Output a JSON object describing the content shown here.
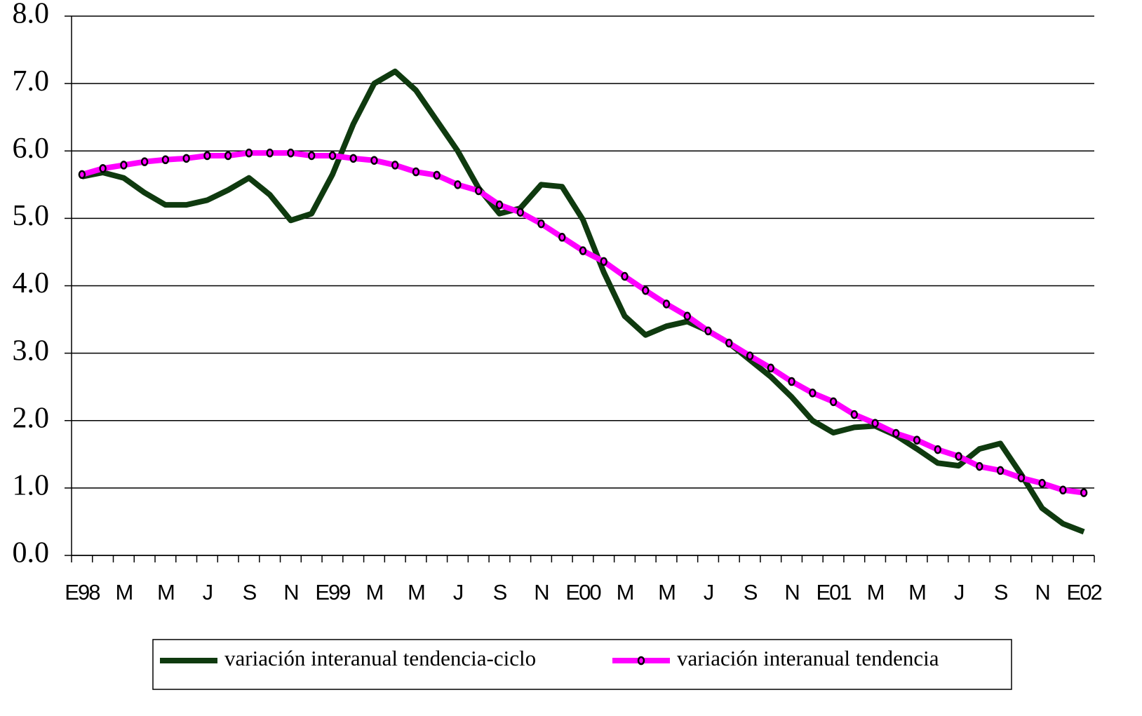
{
  "chart_data": {
    "type": "line",
    "categories": [
      "E98",
      null,
      "M",
      null,
      "M",
      null,
      "J",
      null,
      "S",
      null,
      "N",
      null,
      "E99",
      null,
      "M",
      null,
      "M",
      null,
      "J",
      null,
      "S",
      null,
      "N",
      null,
      "E00",
      null,
      "M",
      null,
      "M",
      null,
      "J",
      null,
      "S",
      null,
      "N",
      null,
      "E01",
      null,
      "M",
      null,
      "M",
      null,
      "J",
      null,
      "S",
      null,
      "N",
      null,
      "E02"
    ],
    "series": [
      {
        "name": "variación interanual tendencia-ciclo",
        "color": "#0f3a0f",
        "marker": false,
        "values": [
          5.62,
          5.68,
          5.6,
          5.38,
          5.2,
          5.2,
          5.27,
          5.42,
          5.6,
          5.35,
          4.97,
          5.07,
          5.65,
          6.4,
          7.0,
          7.18,
          6.9,
          6.45,
          6.0,
          5.45,
          5.07,
          5.15,
          5.5,
          5.47,
          4.98,
          4.2,
          3.55,
          3.27,
          3.4,
          3.47,
          3.33,
          3.15,
          2.9,
          2.65,
          2.35,
          2.0,
          1.82,
          1.9,
          1.92,
          1.78,
          1.58,
          1.37,
          1.33,
          1.58,
          1.66,
          1.2,
          0.7,
          0.47,
          0.35
        ]
      },
      {
        "name": "variación interanual tendencia",
        "color": "#ff00ff",
        "marker": true,
        "values": [
          5.65,
          5.74,
          5.79,
          5.84,
          5.87,
          5.89,
          5.93,
          5.93,
          5.97,
          5.97,
          5.97,
          5.93,
          5.93,
          5.89,
          5.86,
          5.79,
          5.69,
          5.64,
          5.5,
          5.41,
          5.2,
          5.09,
          4.92,
          4.72,
          4.52,
          4.36,
          4.14,
          3.93,
          3.73,
          3.55,
          3.33,
          3.15,
          2.96,
          2.78,
          2.58,
          2.41,
          2.28,
          2.09,
          1.96,
          1.81,
          1.71,
          1.57,
          1.47,
          1.32,
          1.26,
          1.15,
          1.07,
          0.97,
          0.93
        ]
      }
    ],
    "ylim": [
      0,
      8
    ],
    "yticks": [
      {
        "value": 0,
        "label": "0.0"
      },
      {
        "value": 1,
        "label": "1.0"
      },
      {
        "value": 2,
        "label": "2.0"
      },
      {
        "value": 3,
        "label": "3.0"
      },
      {
        "value": 4,
        "label": "4.0"
      },
      {
        "value": 5,
        "label": "5.0"
      },
      {
        "value": 6,
        "label": "6.0"
      },
      {
        "value": 7,
        "label": "7.0"
      },
      {
        "value": 8,
        "label": "8.0"
      }
    ],
    "grid": true,
    "legend": "bottom"
  }
}
